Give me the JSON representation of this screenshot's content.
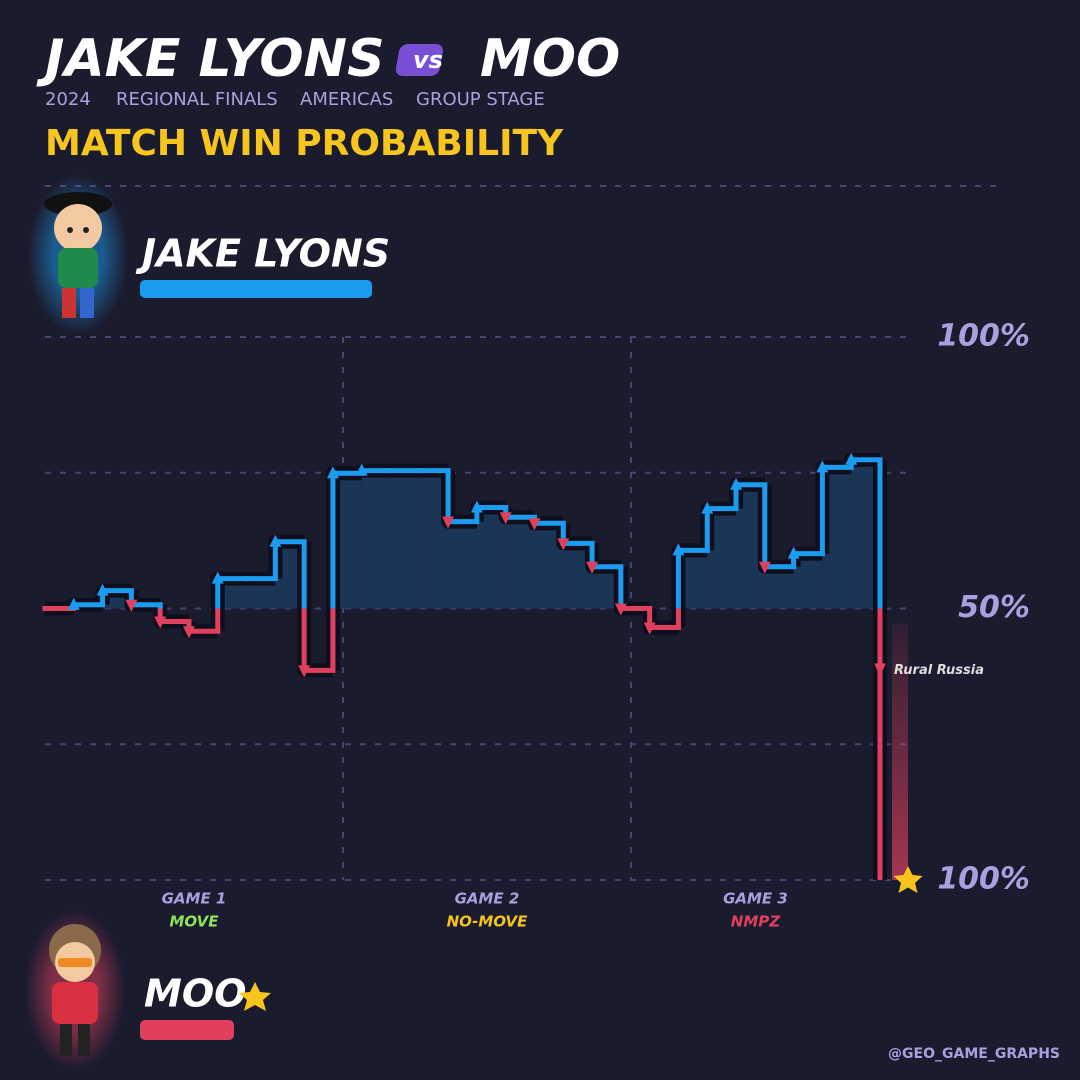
{
  "chart_data": {
    "type": "step",
    "title": {
      "left": "JAKE LYONS",
      "vs": "vs",
      "right": "MOO"
    },
    "subtitle": [
      "2024",
      "REGIONAL FINALS",
      "AMERICAS",
      "GROUP STAGE"
    ],
    "heading": "MATCH WIN PROBABILITY",
    "players": [
      {
        "name": "JAKE LYONS",
        "color": "#1a9cf0"
      },
      {
        "name": "MOO",
        "color": "#e0405e"
      }
    ],
    "colors": {
      "above": "#1a9cf0",
      "below": "#e0405e"
    },
    "x": [
      0,
      1,
      2,
      3,
      4,
      5,
      6,
      7,
      8,
      9,
      10,
      11,
      12,
      13,
      14,
      15,
      16,
      17,
      18,
      19,
      20,
      21,
      22,
      23,
      24,
      25,
      26,
      27,
      28,
      29
    ],
    "values": [
      50,
      50.7,
      53.3,
      50.7,
      47.6,
      45.8,
      55.5,
      55.5,
      62.3,
      38.6,
      74.9,
      75.4,
      75.4,
      75.4,
      66,
      68.6,
      66.8,
      65.7,
      62,
      57.7,
      50,
      46.5,
      60.7,
      68.4,
      72.8,
      57.7,
      60.1,
      76,
      77.4,
      0
    ],
    "xlim": [
      0,
      29
    ],
    "ylim": [
      0,
      100
    ],
    "yticks": [
      {
        "value": 100,
        "label": "100%"
      },
      {
        "value": 75,
        "label": ""
      },
      {
        "value": 50,
        "label": "50%"
      },
      {
        "value": 25,
        "label": ""
      },
      {
        "value": 0,
        "label": "100%"
      }
    ],
    "dividers": [
      10.35,
      20.35
    ],
    "games": [
      {
        "name": "GAME 1",
        "mode": "MOVE",
        "color": "#8fe35a"
      },
      {
        "name": "GAME 2",
        "mode": "NO-MOVE",
        "color": "#f7c51e"
      },
      {
        "name": "GAME 3",
        "mode": "NMPZ",
        "color": "#e0405e"
      }
    ],
    "annotation": "Rural Russia",
    "credit": "@GEO_GAME_GRAPHS"
  }
}
